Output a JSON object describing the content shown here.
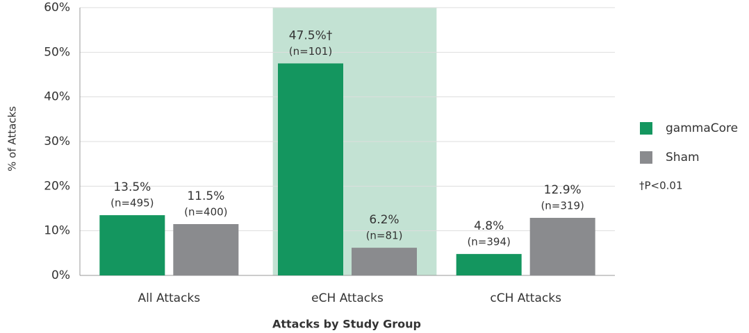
{
  "chart_data": {
    "type": "bar",
    "x_label": "Attacks by Study Group",
    "y_label": "% of Attacks",
    "categories": [
      "All Attacks",
      "eCH Attacks",
      "cCH Attacks"
    ],
    "series": [
      {
        "name": "gammaCore",
        "color": "#14965f",
        "values": [
          13.5,
          47.5,
          4.8
        ],
        "value_labels": [
          "13.5%",
          "47.5%†",
          "4.8%"
        ],
        "n_labels": [
          "(n=495)",
          "(n=101)",
          "(n=394)"
        ]
      },
      {
        "name": "Sham",
        "color": "#8a8b8e",
        "values": [
          11.5,
          6.2,
          12.9
        ],
        "value_labels": [
          "11.5%",
          "6.2%",
          "12.9%"
        ],
        "n_labels": [
          "(n=400)",
          "(n=81)",
          "(n=319)"
        ]
      }
    ],
    "footnote": "†P<0.01",
    "highlight_index": 1,
    "highlight_color": "#c3e2d3",
    "ylim": [
      0,
      60
    ],
    "yticks": [
      {
        "value": 0,
        "label": "0%"
      },
      {
        "value": 10,
        "label": "10%"
      },
      {
        "value": 20,
        "label": "20%"
      },
      {
        "value": 30,
        "label": "30%"
      },
      {
        "value": 40,
        "label": "40%"
      },
      {
        "value": 50,
        "label": "50%"
      },
      {
        "value": 60,
        "label": "60%"
      }
    ],
    "grid": true,
    "legend": "right"
  }
}
